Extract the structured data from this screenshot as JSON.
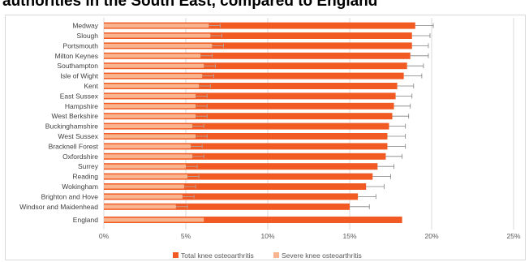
{
  "chart_data": {
    "type": "bar",
    "orientation": "horizontal",
    "title": "authorities in the South East, compared to England",
    "xlabel": "",
    "ylabel": "",
    "xlim": [
      0,
      25
    ],
    "x_ticks": [
      "0%",
      "5%",
      "10%",
      "15%",
      "20%",
      "25%"
    ],
    "grid": true,
    "legend_placement": "bottom",
    "categories": [
      "Medway",
      "Slough",
      "Portsmouth",
      "Milton Keynes",
      "Southampton",
      "Isle of Wight",
      "Kent",
      "East Sussex",
      "Hampshire",
      "West Berkshire",
      "Buckinghamshire",
      "West Sussex",
      "Bracknell Forest",
      "Oxfordshire",
      "Surrey",
      "Reading",
      "Wokingham",
      "Brighton and Hove",
      "Windsor and Maidenhead"
    ],
    "series": [
      {
        "name": "Total knee osteoarthritis",
        "color": "#f15a22",
        "values": [
          19.0,
          18.8,
          18.8,
          18.7,
          18.5,
          18.3,
          17.9,
          17.8,
          17.7,
          17.6,
          17.4,
          17.3,
          17.3,
          17.2,
          16.7,
          16.4,
          16.0,
          15.5,
          15.0
        ],
        "error_upper": [
          20.1,
          19.9,
          19.8,
          19.8,
          19.5,
          19.4,
          18.9,
          18.8,
          18.7,
          18.6,
          18.4,
          18.4,
          18.4,
          18.2,
          17.7,
          17.5,
          17.1,
          16.6,
          16.2
        ]
      },
      {
        "name": "Severe knee osteoarthritis",
        "color": "#f8b48f",
        "values": [
          6.4,
          6.5,
          6.6,
          5.9,
          6.1,
          6.0,
          5.8,
          5.6,
          5.6,
          5.6,
          5.4,
          5.6,
          5.3,
          5.4,
          5.0,
          5.1,
          4.9,
          4.8,
          4.4
        ],
        "error_upper": [
          7.1,
          7.2,
          7.3,
          6.6,
          6.8,
          6.7,
          6.5,
          6.3,
          6.3,
          6.3,
          6.1,
          6.3,
          6.0,
          6.1,
          5.7,
          5.8,
          5.6,
          5.5,
          5.1
        ]
      }
    ],
    "reference": {
      "category": "England",
      "total": 18.2,
      "severe": 6.1
    }
  }
}
